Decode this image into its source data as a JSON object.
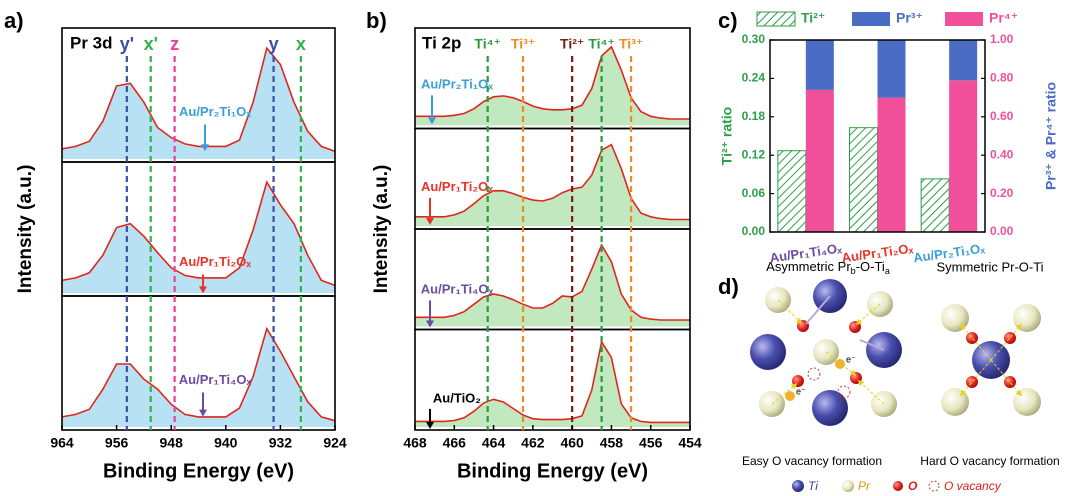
{
  "chart_data": [
    {
      "type": "line",
      "panel_label": "a)",
      "title": "Pr 3d",
      "xlabel": "Binding Energy (eV)",
      "ylabel": "Intensity (a.u.)",
      "xlim": [
        964,
        924
      ],
      "xticks": [
        964,
        956,
        948,
        940,
        932,
        924
      ],
      "ylim": [
        0,
        1
      ],
      "line_color": "#e0261b",
      "fill_color": "#7ec8ea",
      "x": [
        964,
        962,
        960,
        958,
        956,
        954,
        952,
        950,
        948,
        946,
        944,
        942,
        940,
        938,
        936,
        934,
        932,
        930,
        928,
        926,
        924
      ],
      "series": [
        {
          "name": "Au/Pr₂Ti₁Oₓ",
          "color": "#3a9fd6",
          "values": [
            0.08,
            0.1,
            0.14,
            0.3,
            0.58,
            0.6,
            0.45,
            0.25,
            0.17,
            0.12,
            0.1,
            0.1,
            0.1,
            0.15,
            0.45,
            0.88,
            0.75,
            0.45,
            0.22,
            0.1,
            0.06
          ]
        },
        {
          "name": "Au/Pr₁Ti₂Oₓ",
          "color": "#e8332a",
          "values": [
            0.1,
            0.12,
            0.16,
            0.3,
            0.52,
            0.55,
            0.45,
            0.32,
            0.2,
            0.14,
            0.12,
            0.12,
            0.12,
            0.2,
            0.5,
            0.88,
            0.7,
            0.55,
            0.3,
            0.1,
            0.06
          ]
        },
        {
          "name": "Au/Pr₁Ti₄Oₓ",
          "color": "#6a4ca0",
          "values": [
            0.08,
            0.1,
            0.14,
            0.3,
            0.5,
            0.5,
            0.38,
            0.3,
            0.18,
            0.1,
            0.08,
            0.08,
            0.08,
            0.15,
            0.4,
            0.78,
            0.6,
            0.4,
            0.2,
            0.08,
            0.05
          ]
        }
      ],
      "vlines": [
        {
          "label": "y'",
          "x": 954.5,
          "color": "#3b4ea8"
        },
        {
          "label": "x'",
          "x": 951,
          "color": "#2fb34a"
        },
        {
          "label": "z",
          "x": 947.5,
          "color": "#e8409a"
        },
        {
          "label": "y",
          "x": 933,
          "color": "#3b4ea8"
        },
        {
          "label": "x",
          "x": 929,
          "color": "#2fb34a"
        }
      ]
    },
    {
      "type": "line",
      "panel_label": "b)",
      "title": "Ti 2p",
      "xlabel": "Binding Energy (eV)",
      "ylabel": "Intensity (a.u.)",
      "xlim": [
        468,
        454
      ],
      "xticks": [
        468,
        466,
        464,
        462,
        460,
        458,
        456,
        454
      ],
      "ylim": [
        0,
        1
      ],
      "line_color": "#e0261b",
      "fill_color": "#8fd68a",
      "x": [
        468,
        467.5,
        467,
        466.5,
        466,
        465.5,
        465,
        464.5,
        464,
        463.5,
        463,
        462.5,
        462,
        461.5,
        461,
        460.5,
        460,
        459.5,
        459,
        458.5,
        458,
        457.5,
        457,
        456.5,
        456,
        455.5,
        455,
        454.5,
        454
      ],
      "series": [
        {
          "name": "Au/Pr₂Ti₁Oₓ",
          "color": "#3a9fd6",
          "values": [
            0.1,
            0.1,
            0.1,
            0.1,
            0.11,
            0.13,
            0.18,
            0.26,
            0.31,
            0.32,
            0.3,
            0.26,
            0.21,
            0.18,
            0.17,
            0.17,
            0.18,
            0.22,
            0.4,
            0.75,
            0.85,
            0.6,
            0.3,
            0.15,
            0.1,
            0.08,
            0.07,
            0.07,
            0.07
          ]
        },
        {
          "name": "Au/Pr₁Ti₂Oₓ",
          "color": "#e8332a",
          "values": [
            0.1,
            0.1,
            0.1,
            0.1,
            0.12,
            0.16,
            0.24,
            0.33,
            0.38,
            0.38,
            0.35,
            0.31,
            0.28,
            0.27,
            0.3,
            0.36,
            0.4,
            0.42,
            0.55,
            0.82,
            0.88,
            0.62,
            0.3,
            0.14,
            0.1,
            0.08,
            0.07,
            0.07,
            0.07
          ]
        },
        {
          "name": "Au/Pr₁Ti₄Oₓ",
          "color": "#6a4ca0",
          "values": [
            0.1,
            0.1,
            0.1,
            0.1,
            0.12,
            0.16,
            0.24,
            0.32,
            0.35,
            0.33,
            0.29,
            0.24,
            0.2,
            0.2,
            0.25,
            0.33,
            0.32,
            0.38,
            0.62,
            0.88,
            0.7,
            0.35,
            0.18,
            0.1,
            0.08,
            0.07,
            0.07,
            0.07,
            0.07
          ]
        },
        {
          "name": "Au/TiO₂",
          "color": "#000000",
          "values": [
            0.06,
            0.06,
            0.06,
            0.06,
            0.07,
            0.1,
            0.17,
            0.26,
            0.3,
            0.27,
            0.2,
            0.13,
            0.09,
            0.08,
            0.08,
            0.08,
            0.09,
            0.12,
            0.4,
            0.92,
            0.75,
            0.25,
            0.1,
            0.06,
            0.05,
            0.05,
            0.05,
            0.05,
            0.05
          ]
        }
      ],
      "vlines": [
        {
          "label": "Ti⁴⁺",
          "x": 464.3,
          "color": "#2a9a3f"
        },
        {
          "label": "Ti³⁺",
          "x": 462.5,
          "color": "#f08a24"
        },
        {
          "label": "Ti²⁺",
          "x": 460,
          "color": "#7a1a14"
        },
        {
          "label": "Ti⁴⁺",
          "x": 458.5,
          "color": "#2a9a3f"
        },
        {
          "label": "Ti³⁺",
          "x": 457,
          "color": "#f08a24"
        }
      ]
    },
    {
      "type": "bar",
      "panel_label": "c)",
      "ylabel": "Ti²⁺ ratio",
      "y2label": "Pr³⁺ & Pr⁴⁺ ratio",
      "categories": [
        "Au/Pr₁Ti₄Oₓ",
        "Au/Pr₁Ti₂Oₓ",
        "Au/Pr₂Ti₁Oₓ"
      ],
      "category_colors": [
        "#6a4ca0",
        "#e8332a",
        "#3a9fd6"
      ],
      "ylim": [
        0,
        0.3
      ],
      "yticks": [
        {
          "value": 0,
          "label": "0.00"
        },
        {
          "value": 0.06,
          "label": "0.06"
        },
        {
          "value": 0.12,
          "label": "0.12"
        },
        {
          "value": 0.18,
          "label": "0.18"
        },
        {
          "value": 0.24,
          "label": "0.24"
        },
        {
          "value": 0.3,
          "label": "0.30"
        }
      ],
      "y2lim": [
        0,
        1
      ],
      "y2ticks": [
        {
          "value": 0,
          "label": "0.00"
        },
        {
          "value": 0.2,
          "label": "0.20"
        },
        {
          "value": 0.4,
          "label": "0.40"
        },
        {
          "value": 0.6,
          "label": "0.60"
        },
        {
          "value": 0.8,
          "label": "0.80"
        },
        {
          "value": 1,
          "label": "1.00"
        }
      ],
      "series": [
        {
          "name": "Ti²⁺",
          "color": "#2e9e4a",
          "values": [
            0.127,
            0.163,
            0.083
          ]
        },
        {
          "name": "Pr³⁺",
          "color": "#4a6cc4",
          "axis": "y2",
          "values": [
            0.26,
            0.3,
            0.21
          ]
        },
        {
          "name": "Pr⁴⁺",
          "color": "#f0509a",
          "axis": "y2",
          "values": [
            0.74,
            0.7,
            0.79
          ]
        }
      ]
    }
  ],
  "diagram": {
    "panel_label": "d)",
    "left_title": {
      "text": "Asymmetric Pr",
      "sub1": "b",
      "mid": "-O-Ti",
      "sub2": "a"
    },
    "right_title": "Symmetric Pr-O-Ti",
    "left_caption": "Easy O vacancy formation",
    "right_caption": "Hard O vacancy formation",
    "electron": "e⁻",
    "legend": [
      "Ti",
      "Pr",
      "O",
      "O vacancy"
    ]
  }
}
